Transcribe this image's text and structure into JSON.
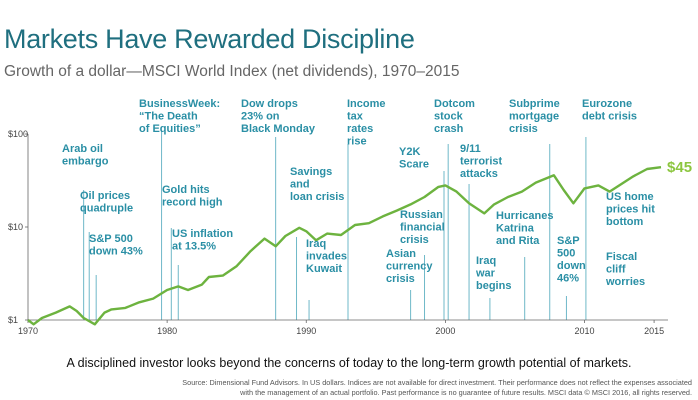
{
  "header": {
    "title": "Markets Have Rewarded Discipline",
    "subtitle": "Growth of a dollar—MSCI World Index (net dividends), 1970–2015"
  },
  "footer": {
    "tagline": "A disciplined investor looks beyond the concerns of today to the long-term growth potential of markets.",
    "source_line1": "Source: Dimensional Fund Advisors. In US dollars. Indices are not available for direct investment. Their performance does not reflect the expenses associated",
    "source_line2": "with the management of an actual portfolio. Past performance is no guarantee of future results. MSCI data © MSCI 2016, all rights reserved."
  },
  "colors": {
    "title": "#1f6f7f",
    "series": "#6db33f",
    "annotation": "#2a8fa5",
    "end_label": "#8cc63f"
  },
  "chart_data": {
    "type": "line",
    "title": "Markets Have Rewarded Discipline",
    "subtitle": "Growth of a dollar—MSCI World Index (net dividends), 1970–2015",
    "xlabel": "",
    "ylabel": "",
    "x_scale": "linear",
    "y_scale": "log",
    "xlim": [
      1970,
      2016
    ],
    "ylim": [
      1,
      100
    ],
    "x_ticks": [
      1970,
      1980,
      1990,
      2000,
      2010,
      2015
    ],
    "y_ticks": [
      {
        "value": 1,
        "label": "$1"
      },
      {
        "value": 10,
        "label": "$10"
      },
      {
        "value": 100,
        "label": "$100"
      }
    ],
    "grid": false,
    "series": [
      {
        "values": [
          {
            "x": 1970.0,
            "y": 1.0
          },
          {
            "x": 1970.4,
            "y": 0.9
          },
          {
            "x": 1971.0,
            "y": 1.05
          },
          {
            "x": 1972.0,
            "y": 1.2
          },
          {
            "x": 1973.0,
            "y": 1.4
          },
          {
            "x": 1973.5,
            "y": 1.25
          },
          {
            "x": 1974.0,
            "y": 1.05
          },
          {
            "x": 1974.8,
            "y": 0.9
          },
          {
            "x": 1975.5,
            "y": 1.2
          },
          {
            "x": 1976.0,
            "y": 1.3
          },
          {
            "x": 1977.0,
            "y": 1.35
          },
          {
            "x": 1978.0,
            "y": 1.55
          },
          {
            "x": 1979.0,
            "y": 1.7
          },
          {
            "x": 1980.0,
            "y": 2.1
          },
          {
            "x": 1980.8,
            "y": 2.3
          },
          {
            "x": 1981.5,
            "y": 2.1
          },
          {
            "x": 1982.5,
            "y": 2.4
          },
          {
            "x": 1983.0,
            "y": 2.9
          },
          {
            "x": 1984.0,
            "y": 3.0
          },
          {
            "x": 1985.0,
            "y": 3.8
          },
          {
            "x": 1986.0,
            "y": 5.5
          },
          {
            "x": 1987.0,
            "y": 7.5
          },
          {
            "x": 1987.8,
            "y": 6.2
          },
          {
            "x": 1988.5,
            "y": 8.0
          },
          {
            "x": 1989.5,
            "y": 9.8
          },
          {
            "x": 1990.0,
            "y": 9.0
          },
          {
            "x": 1990.7,
            "y": 7.2
          },
          {
            "x": 1991.5,
            "y": 8.5
          },
          {
            "x": 1992.5,
            "y": 8.2
          },
          {
            "x": 1993.5,
            "y": 10.5
          },
          {
            "x": 1994.5,
            "y": 11.0
          },
          {
            "x": 1995.5,
            "y": 13.0
          },
          {
            "x": 1996.5,
            "y": 15.0
          },
          {
            "x": 1997.5,
            "y": 17.5
          },
          {
            "x": 1998.5,
            "y": 21.0
          },
          {
            "x": 1999.5,
            "y": 27.0
          },
          {
            "x": 2000.0,
            "y": 28.0
          },
          {
            "x": 2000.8,
            "y": 24.0
          },
          {
            "x": 2001.7,
            "y": 18.0
          },
          {
            "x": 2002.8,
            "y": 14.0
          },
          {
            "x": 2003.5,
            "y": 17.5
          },
          {
            "x": 2004.5,
            "y": 21.0
          },
          {
            "x": 2005.5,
            "y": 24.0
          },
          {
            "x": 2006.5,
            "y": 30.0
          },
          {
            "x": 2007.8,
            "y": 36.0
          },
          {
            "x": 2008.5,
            "y": 25.0
          },
          {
            "x": 2009.2,
            "y": 18.0
          },
          {
            "x": 2010.0,
            "y": 26.0
          },
          {
            "x": 2011.0,
            "y": 28.0
          },
          {
            "x": 2011.8,
            "y": 24.0
          },
          {
            "x": 2012.5,
            "y": 28.0
          },
          {
            "x": 2013.5,
            "y": 35.0
          },
          {
            "x": 2014.5,
            "y": 42.0
          },
          {
            "x": 2015.5,
            "y": 44.0
          }
        ]
      }
    ],
    "end_label": "$45",
    "annotations": [
      {
        "year": 1974.0,
        "text": [
          "Arab oil",
          "embargo"
        ]
      },
      {
        "year": 1974.4,
        "text": [
          "Oil prices",
          "quadruple"
        ]
      },
      {
        "year": 1974.9,
        "text": [
          "S&P 500",
          "down 43%"
        ]
      },
      {
        "year": 1979.6,
        "text": [
          "BusinessWeek:",
          "“The Death",
          "of Equities”"
        ]
      },
      {
        "year": 1980.3,
        "text": [
          "Gold hits",
          "record high"
        ]
      },
      {
        "year": 1980.8,
        "text": [
          "US inflation",
          "at 13.5%"
        ]
      },
      {
        "year": 1987.8,
        "text": [
          "Dow drops",
          "23% on",
          "Black Monday"
        ]
      },
      {
        "year": 1989.3,
        "text": [
          "Savings",
          "and",
          "loan crisis"
        ]
      },
      {
        "year": 1990.2,
        "text": [
          "Iraq",
          "invades",
          "Kuwait"
        ]
      },
      {
        "year": 1993.0,
        "text": [
          "Income",
          "tax",
          "rates",
          "rise"
        ]
      },
      {
        "year": 1997.5,
        "text": [
          "Asian",
          "currency",
          "crisis"
        ]
      },
      {
        "year": 1998.5,
        "text": [
          "Russian",
          "financial",
          "crisis"
        ]
      },
      {
        "year": 1999.9,
        "text": [
          "Y2K",
          "Scare"
        ]
      },
      {
        "year": 2000.2,
        "text": [
          "Dotcom",
          "stock",
          "crash"
        ]
      },
      {
        "year": 2001.7,
        "text": [
          "9/11",
          "terrorist",
          "attacks"
        ]
      },
      {
        "year": 2003.2,
        "text": [
          "Iraq",
          "war",
          "begins"
        ]
      },
      {
        "year": 2005.7,
        "text": [
          "Hurricanes",
          "Katrina",
          "and Rita"
        ]
      },
      {
        "year": 2007.5,
        "text": [
          "Subprime",
          "mortgage",
          "crisis"
        ]
      },
      {
        "year": 2008.7,
        "text": [
          "S&P",
          "500",
          "down",
          "46%"
        ]
      },
      {
        "year": 2010.1,
        "text": [
          "Eurozone",
          "debt crisis"
        ]
      },
      {
        "year": 2012.9,
        "text": [
          "US home",
          "prices hit",
          "bottom"
        ]
      },
      {
        "year": 2012.9,
        "text": [
          "Fiscal",
          "cliff",
          "worries"
        ]
      }
    ]
  }
}
